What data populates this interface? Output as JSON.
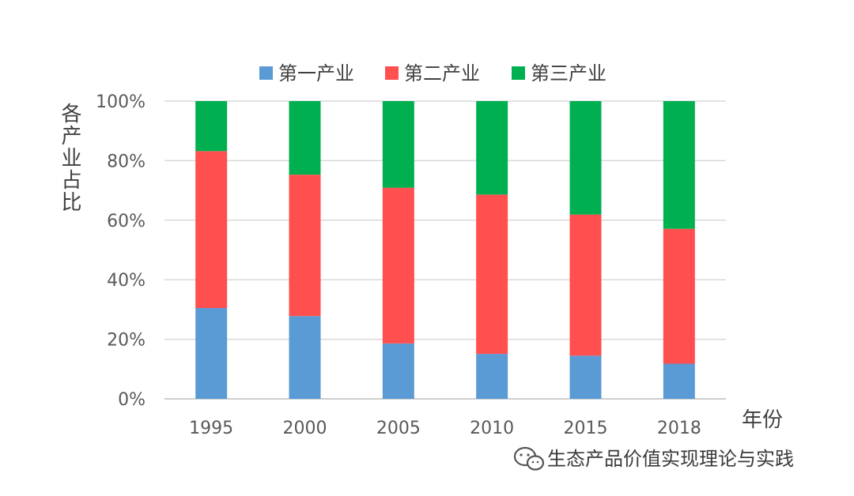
{
  "chart_data": {
    "type": "bar",
    "stacked": true,
    "categories": [
      "1995",
      "2000",
      "2005",
      "2010",
      "2015",
      "2018"
    ],
    "series": [
      {
        "name": "第一产业",
        "color": "#5B9BD5",
        "values": [
          30.5,
          27.8,
          18.6,
          15.1,
          14.5,
          11.8
        ]
      },
      {
        "name": "第二产业",
        "color": "#FF4F4F",
        "values": [
          52.7,
          47.5,
          52.3,
          53.5,
          47.4,
          45.3
        ]
      },
      {
        "name": "第三产业",
        "color": "#00B050",
        "values": [
          16.8,
          24.7,
          29.1,
          31.4,
          38.1,
          42.9
        ]
      }
    ],
    "ylabel": "各产业占比",
    "xlabel": "年份",
    "ylim": [
      0,
      100
    ],
    "yticks": [
      "0%",
      "20%",
      "40%",
      "60%",
      "80%",
      "100%"
    ],
    "grid": true,
    "legend_position": "top-center"
  },
  "watermark": {
    "icon": "wechat-icon",
    "text": "生态产品价值实现理论与实践"
  }
}
